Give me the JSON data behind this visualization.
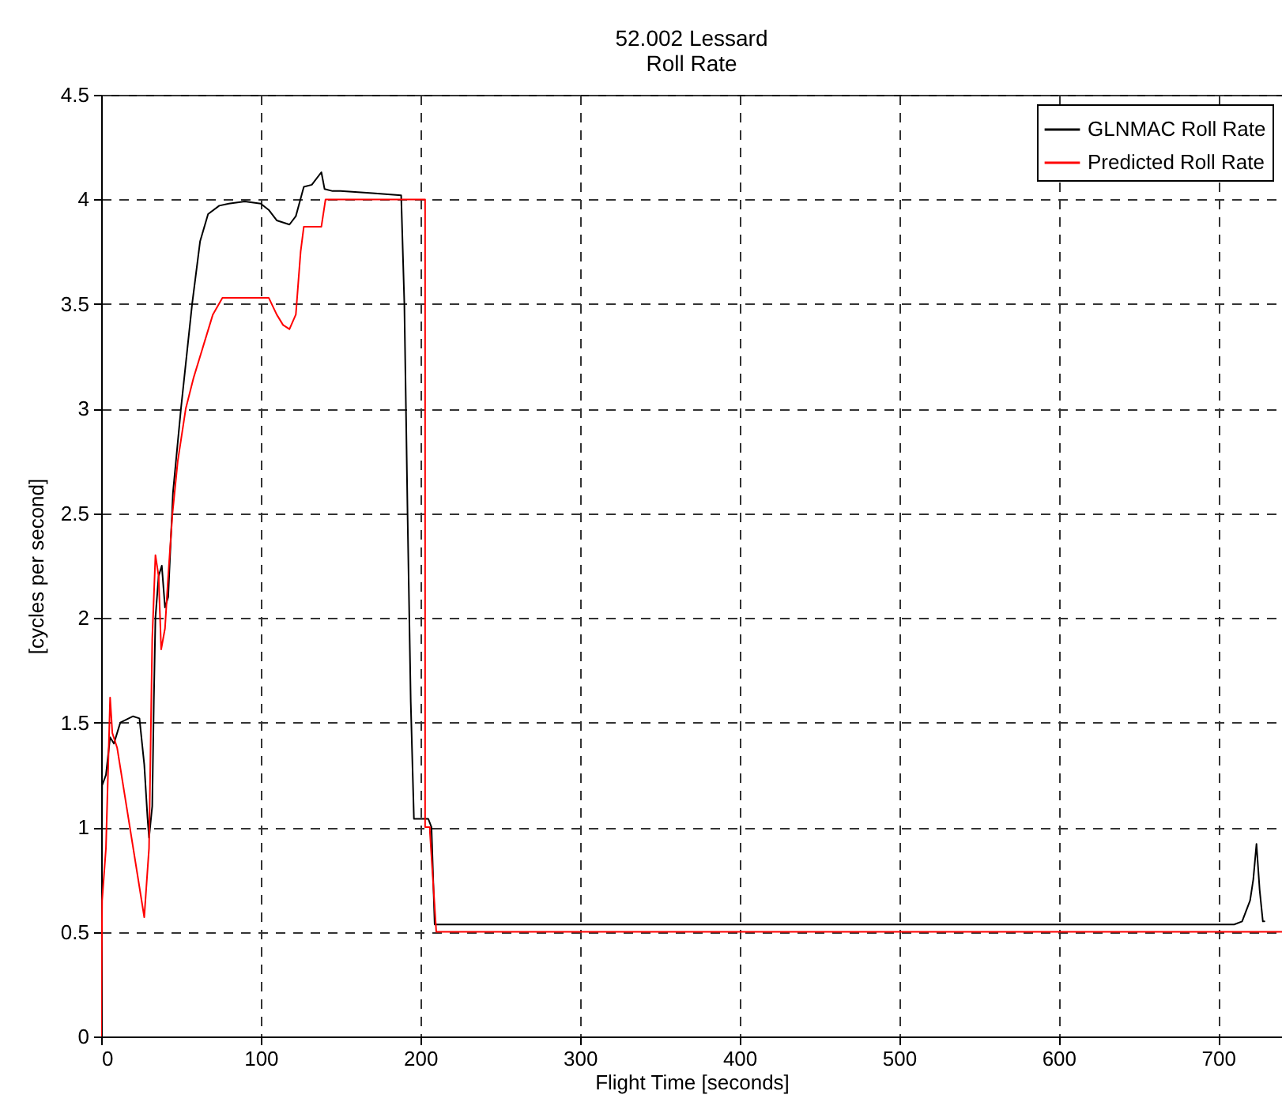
{
  "chart_data": {
    "type": "line",
    "title": "52.002 Lessard",
    "subtitle": "Roll Rate",
    "xlabel": "Flight Time [seconds]",
    "ylabel": "[cycles per second]",
    "xlim": [
      0,
      740
    ],
    "ylim": [
      0,
      4.5
    ],
    "xticks": [
      0,
      100,
      200,
      300,
      400,
      500,
      600,
      700
    ],
    "yticks": [
      0,
      0.5,
      1,
      1.5,
      2,
      2.5,
      3,
      3.5,
      4,
      4.5
    ],
    "grid": true,
    "legend": "top right",
    "line_style": "solid",
    "series": [
      {
        "name": "GLNMAC Roll Rate",
        "color": "#000000",
        "x": [
          0,
          0.6,
          3,
          5.6,
          8,
          12,
          20,
          24,
          27,
          29,
          30,
          32,
          33,
          34,
          36,
          38,
          40,
          42,
          45,
          50,
          57,
          62,
          67,
          74,
          80,
          90,
          100,
          105,
          110,
          118,
          122,
          127,
          132,
          138,
          140,
          145,
          150,
          170,
          188,
          190,
          192,
          194,
          196,
          200,
          205,
          207,
          209,
          300,
          500,
          710,
          715,
          720,
          722,
          724,
          726,
          728,
          729
        ],
        "values": [
          0,
          1.2,
          1.25,
          1.43,
          1.4,
          1.5,
          1.53,
          1.52,
          1.3,
          1.05,
          0.95,
          1.1,
          1.6,
          2.0,
          2.2,
          2.25,
          2.05,
          2.1,
          2.6,
          3.0,
          3.5,
          3.8,
          3.93,
          3.97,
          3.98,
          3.99,
          3.98,
          3.95,
          3.9,
          3.88,
          3.92,
          4.06,
          4.07,
          4.13,
          4.05,
          4.04,
          4.04,
          4.03,
          4.02,
          3.5,
          2.5,
          1.6,
          1.04,
          1.04,
          1.04,
          1.0,
          0.535,
          0.535,
          0.535,
          0.535,
          0.55,
          0.65,
          0.75,
          0.92,
          0.7,
          0.55,
          0.55
        ]
      },
      {
        "name": "Predicted Roll Rate",
        "color": "#ff0000",
        "x": [
          0,
          0.6,
          3,
          5.6,
          7,
          10,
          27,
          30,
          32,
          34,
          36,
          37.6,
          40,
          42,
          44.7,
          48,
          53,
          58,
          64,
          70,
          76,
          105,
          110,
          114,
          118,
          122,
          125,
          127,
          135,
          138,
          140.6,
          203,
          203,
          206,
          206,
          210,
          740
        ],
        "values": [
          0,
          0.65,
          0.9,
          1.62,
          1.45,
          1.38,
          0.57,
          0.9,
          1.9,
          2.3,
          2.2,
          1.85,
          1.95,
          2.2,
          2.5,
          2.75,
          3.0,
          3.15,
          3.3,
          3.45,
          3.53,
          3.53,
          3.45,
          3.4,
          3.38,
          3.45,
          3.75,
          3.87,
          3.87,
          3.87,
          4.0,
          4.0,
          1.0,
          1.0,
          0.98,
          0.5,
          0.5
        ]
      }
    ]
  }
}
